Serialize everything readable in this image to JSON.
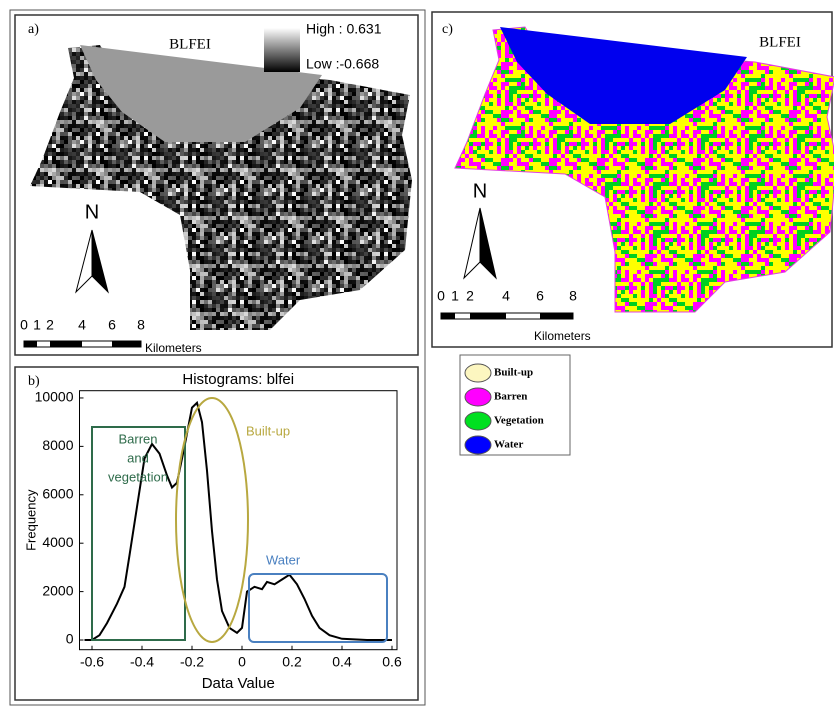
{
  "panel_a": {
    "label": "a)",
    "title": "BLFEI",
    "legend_high": "High : 0.631",
    "legend_low": "Low :-0.668",
    "north": "N",
    "scale_labels": [
      "0",
      "1",
      "2",
      "4",
      "6",
      "8"
    ],
    "scale_unit": "Kilometers"
  },
  "chart_data": {
    "type": "line",
    "panel_label": "b)",
    "title": "Histograms: blfei",
    "xlabel": "Data Value",
    "ylabel": "Frequency",
    "x": [
      -0.63,
      -0.6,
      -0.57,
      -0.54,
      -0.5,
      -0.47,
      -0.45,
      -0.42,
      -0.39,
      -0.36,
      -0.33,
      -0.3,
      -0.28,
      -0.26,
      -0.23,
      -0.2,
      -0.18,
      -0.16,
      -0.14,
      -0.12,
      -0.1,
      -0.08,
      -0.05,
      -0.02,
      0.0,
      0.02,
      0.05,
      0.08,
      0.1,
      0.13,
      0.16,
      0.19,
      0.22,
      0.25,
      0.28,
      0.31,
      0.35,
      0.4,
      0.5,
      0.6
    ],
    "values": [
      0,
      0,
      200,
      700,
      1500,
      2200,
      3500,
      5500,
      7500,
      8100,
      7700,
      6800,
      6300,
      6500,
      8000,
      9600,
      9800,
      9000,
      7000,
      4500,
      2500,
      1200,
      500,
      300,
      500,
      2000,
      2200,
      2100,
      2400,
      2300,
      2500,
      2700,
      2300,
      1700,
      1000,
      500,
      200,
      50,
      0,
      0
    ],
    "color": "#000000",
    "xlim": [
      -0.65,
      0.62
    ],
    "ylim": [
      -400,
      10300
    ],
    "xticks": [
      -0.6,
      -0.4,
      -0.2,
      0,
      0.2,
      0.4,
      0.6
    ],
    "yticks": [
      0,
      2000,
      4000,
      6000,
      8000,
      10000
    ],
    "annotations": [
      {
        "text": [
          "Barren",
          "and",
          "vegetation"
        ],
        "color": "#2e6b4a"
      },
      {
        "text": "Built-up",
        "color": "#b8a840"
      },
      {
        "text": "Water",
        "color": "#4a80c0"
      }
    ]
  },
  "panel_c": {
    "label": "c)",
    "title": "BLFEI",
    "north": "N",
    "scale_labels": [
      "0",
      "1",
      "2",
      "4",
      "6",
      "8"
    ],
    "scale_unit": "Kilometers"
  },
  "class_legend": {
    "items": [
      {
        "name": "Built-up",
        "color": "#fcf6c0"
      },
      {
        "name": "Barren",
        "color": "#ff00ff"
      },
      {
        "name": "Vegetation",
        "color": "#00e020"
      },
      {
        "name": "Water",
        "color": "#0000ff"
      }
    ]
  }
}
